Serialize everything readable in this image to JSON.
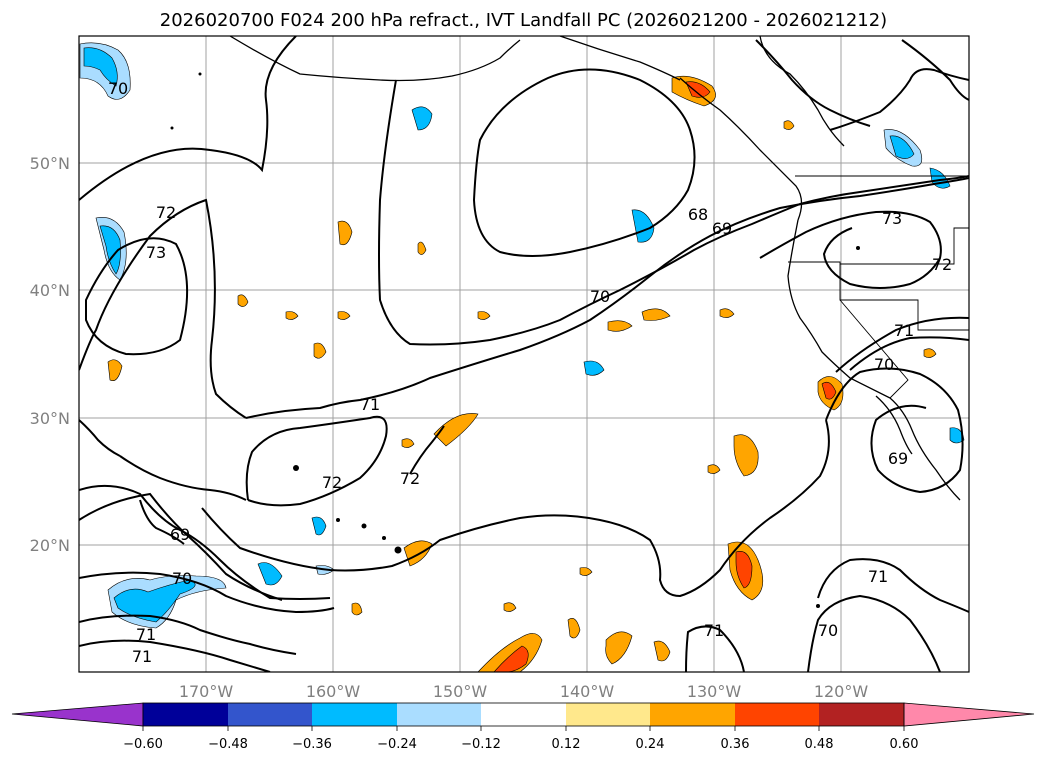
{
  "title": "2026020700 F024 200 hPa refract., IVT Landfall PC (2026021200 - 2026021212)",
  "lat_axis": [
    "50°N",
    "40°N",
    "30°N",
    "20°N"
  ],
  "lon_axis": [
    "170°W",
    "160°W",
    "150°W",
    "140°W",
    "130°W",
    "120°W"
  ],
  "contour_labels": [
    "70",
    "72",
    "73",
    "71",
    "72",
    "69",
    "70",
    "71",
    "71",
    "68",
    "69",
    "70",
    "72",
    "73",
    "71",
    "70",
    "69",
    "71",
    "71",
    "70"
  ],
  "colorbar": {
    "ticks": [
      "−0.60",
      "−0.48",
      "−0.36",
      "−0.24",
      "−0.12",
      "0.12",
      "0.24",
      "0.36",
      "0.48",
      "0.60"
    ],
    "colors": [
      "#9933cc",
      "#000099",
      "#3355cc",
      "#00bbff",
      "#aaddff",
      "#ffffff",
      "#ffe88c",
      "#ffa500",
      "#ff4400",
      "#b22222",
      "#ff88aa"
    ]
  }
}
